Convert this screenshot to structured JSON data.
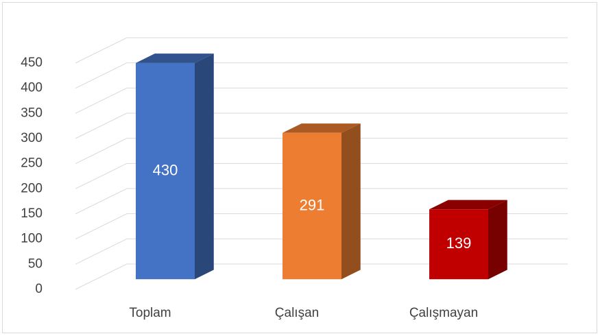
{
  "chart_data": {
    "type": "bar3d",
    "categories": [
      "Toplam",
      "Çalışan",
      "Çalışmayan"
    ],
    "values": [
      430,
      291,
      139
    ],
    "colors": [
      "#4472c4",
      "#ed7d31",
      "#c00000"
    ],
    "ylim": [
      0,
      450
    ],
    "yticks": [
      0,
      50,
      100,
      150,
      200,
      250,
      300,
      350,
      400,
      450
    ],
    "grid": true
  }
}
